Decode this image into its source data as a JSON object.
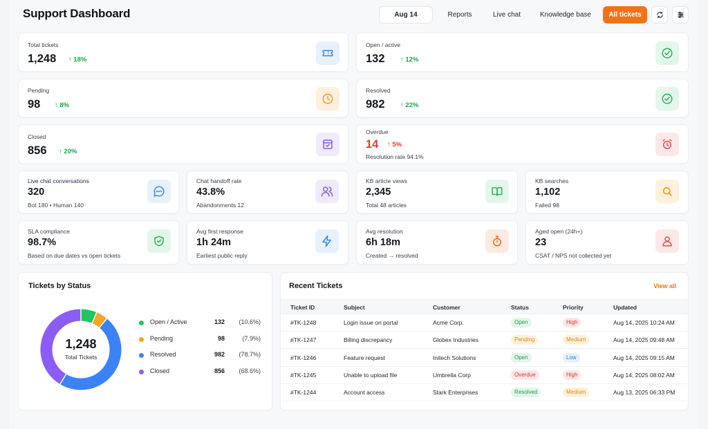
{
  "header": {
    "title": "Support Dashboard",
    "date": "Aug 14",
    "nav": [
      "Reports",
      "Live chat",
      "Knowledge base",
      "All tickets"
    ]
  },
  "stats": {
    "total": {
      "label": "Total tickets",
      "value": "1,248",
      "delta": "18%",
      "icon": "ticket-icon"
    },
    "open": {
      "label": "Open / active",
      "value": "132",
      "delta": "12%",
      "icon": "check-circle-icon"
    },
    "pending": {
      "label": "Pending",
      "value": "98",
      "delta": "8%",
      "icon": "clock-icon"
    },
    "resolved": {
      "label": "Resolved",
      "value": "982",
      "delta": "22%",
      "icon": "check-circle-icon"
    },
    "closed": {
      "label": "Closed",
      "value": "856",
      "delta": "20%",
      "icon": "archive-check-icon"
    },
    "overdue": {
      "label": "Overdue",
      "value": "14",
      "delta": "5%",
      "sub": "Resolution rate 94.1%",
      "icon": "alarm-clock-icon"
    }
  },
  "metrics": [
    {
      "label": "Live chat conversations",
      "value": "320",
      "sub": "Bot 180 • Human 140",
      "icon": "chat-icon"
    },
    {
      "label": "Chat handoff rate",
      "value": "43.8%",
      "sub": "Abandonments 12",
      "icon": "users-icon"
    },
    {
      "label": "KB article views",
      "value": "2,345",
      "sub": "Total 48 articles",
      "icon": "book-icon"
    },
    {
      "label": "KB searches",
      "value": "1,102",
      "sub": "Failed 98",
      "icon": "search-icon"
    },
    {
      "label": "SLA compliance",
      "value": "98.7%",
      "sub": "Based on due dates vs open tickets",
      "icon": "shield-check-icon"
    },
    {
      "label": "Avg first response",
      "value": "1h 24m",
      "sub": "Earliest public reply",
      "icon": "lightning-icon"
    },
    {
      "label": "Avg resolution",
      "value": "6h 18m",
      "sub": "Created → resolved",
      "icon": "stopwatch-icon"
    },
    {
      "label": "Aged open (24h+)",
      "value": "23",
      "sub": "CSAT / NPS not collected yet",
      "icon": "user-icon"
    }
  ],
  "status_chart": {
    "title": "Tickets by Status",
    "center_value": "1,248",
    "center_label": "Total Tickets",
    "items": [
      {
        "name": "Open / Active",
        "count": "132",
        "pct": "(10.6%)",
        "color": "#22c55e"
      },
      {
        "name": "Pending",
        "count": "98",
        "pct": "(7.9%)",
        "color": "#f5a623"
      },
      {
        "name": "Resolved",
        "count": "982",
        "pct": "(78.7%)",
        "color": "#3b82f6"
      },
      {
        "name": "Closed",
        "count": "856",
        "pct": "(68.6%)",
        "color": "#8b5cf6"
      }
    ]
  },
  "chart_data": {
    "type": "pie",
    "categories": [
      "Open / Active",
      "Pending",
      "Resolved",
      "Closed"
    ],
    "values": [
      132,
      98,
      982,
      856
    ],
    "title": "Tickets by Status"
  },
  "recent": {
    "title": "Recent Tickets",
    "view_all": "View all",
    "columns": [
      "Ticket ID",
      "Subject",
      "Customer",
      "Status",
      "Priority",
      "Updated"
    ],
    "rows": [
      {
        "id": "#TK-1248",
        "subject": "Login issue on portal",
        "customer": "Acme Corp.",
        "status": "Open",
        "priority": "High",
        "updated": "Aug 14, 2025 10:24 AM"
      },
      {
        "id": "#TK-1247",
        "subject": "Billing discrepancy",
        "customer": "Globex Industries",
        "status": "Pending",
        "priority": "Medium",
        "updated": "Aug 14, 2025 09:48 AM"
      },
      {
        "id": "#TK-1246",
        "subject": "Feature request",
        "customer": "Initech Solutions",
        "status": "Open",
        "priority": "Low",
        "updated": "Aug 14, 2025 09:15 AM"
      },
      {
        "id": "#TK-1245",
        "subject": "Unable to upload file",
        "customer": "Umbrella Corp",
        "status": "Overdue",
        "priority": "High",
        "updated": "Aug 14, 2025 08:02 AM"
      },
      {
        "id": "#TK-1244",
        "subject": "Account access",
        "customer": "Stark Enterprises",
        "status": "Resolved",
        "priority": "Medium",
        "updated": "Aug 13, 2025 06:33 PM"
      }
    ]
  },
  "colors": {
    "accent": "#f47216",
    "up": "#1aa34a",
    "down": "#e53935"
  }
}
